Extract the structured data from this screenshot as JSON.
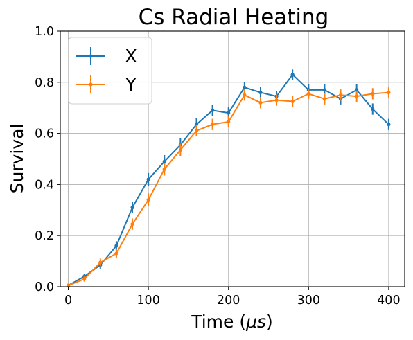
{
  "chart_data": {
    "type": "line",
    "title": "Cs Radial Heating",
    "xlabel_main": "Time (",
    "xlabel_unit": "μs",
    "xlabel_close": ")",
    "ylabel": "Survival",
    "xlim": [
      -10,
      420
    ],
    "ylim": [
      0,
      1.0
    ],
    "xticks": [
      0,
      100,
      200,
      300,
      400
    ],
    "yticks": [
      0.0,
      0.2,
      0.4,
      0.6,
      0.8,
      1.0
    ],
    "ytick_labels": [
      "0.0",
      "0.2",
      "0.4",
      "0.6",
      "0.8",
      "1.0"
    ],
    "grid": true,
    "legend_position": "top-left",
    "x": [
      0,
      20,
      40,
      60,
      80,
      100,
      120,
      140,
      160,
      180,
      200,
      220,
      240,
      260,
      280,
      300,
      320,
      340,
      360,
      380,
      400
    ],
    "series": [
      {
        "name": "X",
        "color": "#1f77b4",
        "values": [
          0.005,
          0.04,
          0.085,
          0.16,
          0.31,
          0.42,
          0.49,
          0.555,
          0.635,
          0.69,
          0.68,
          0.78,
          0.76,
          0.745,
          0.83,
          0.77,
          0.77,
          0.735,
          0.77,
          0.695,
          0.635
        ],
        "errors": [
          0.006,
          0.01,
          0.015,
          0.018,
          0.022,
          0.025,
          0.025,
          0.025,
          0.025,
          0.022,
          0.022,
          0.022,
          0.022,
          0.022,
          0.02,
          0.022,
          0.022,
          0.022,
          0.022,
          0.022,
          0.022
        ]
      },
      {
        "name": "Y",
        "color": "#ff7f0e",
        "values": [
          0.005,
          0.03,
          0.095,
          0.13,
          0.245,
          0.34,
          0.46,
          0.535,
          0.61,
          0.635,
          0.645,
          0.75,
          0.72,
          0.73,
          0.725,
          0.755,
          0.735,
          0.75,
          0.745,
          0.755,
          0.76
        ],
        "errors": [
          0.006,
          0.01,
          0.015,
          0.018,
          0.022,
          0.025,
          0.025,
          0.025,
          0.022,
          0.022,
          0.022,
          0.022,
          0.022,
          0.022,
          0.022,
          0.02,
          0.022,
          0.022,
          0.022,
          0.022,
          0.02
        ]
      }
    ]
  }
}
